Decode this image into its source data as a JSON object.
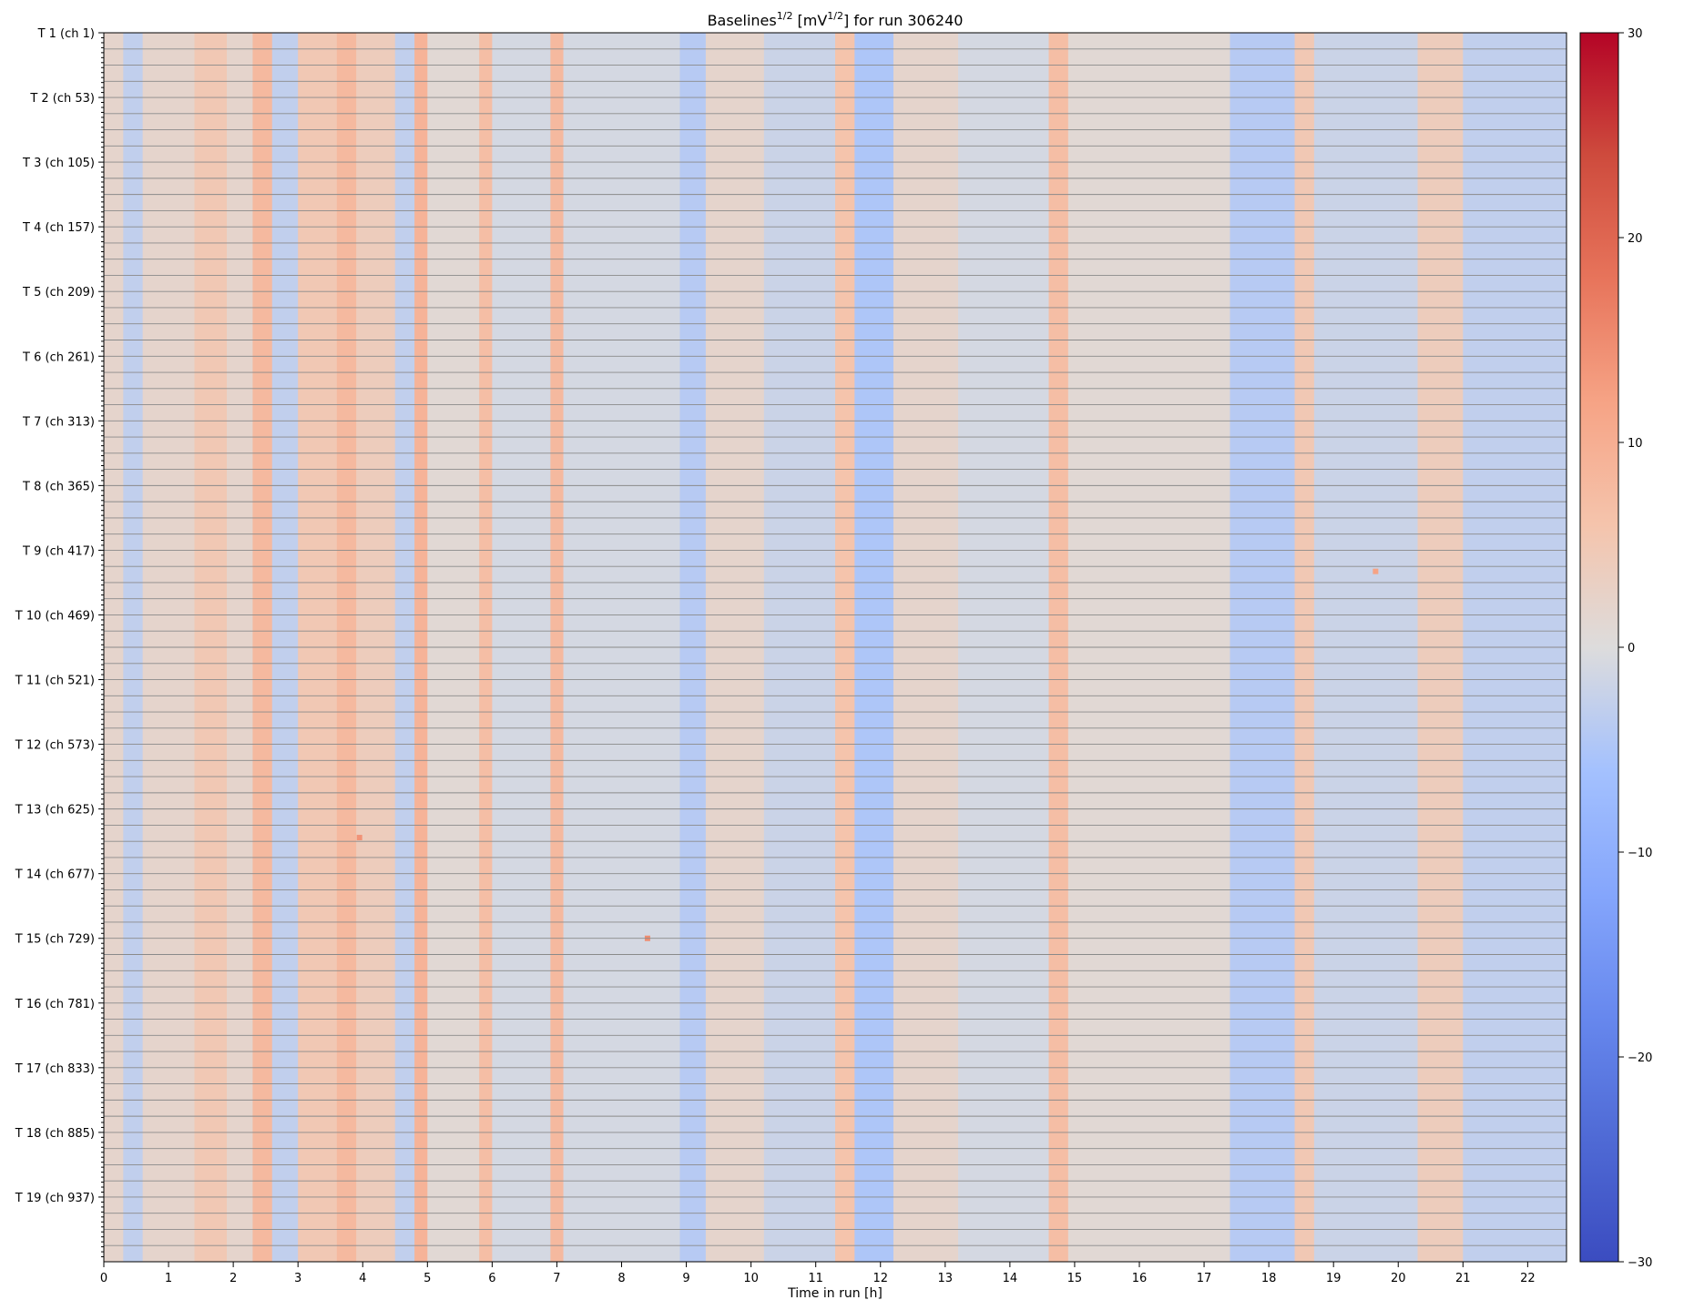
{
  "chart_data": {
    "type": "heatmap",
    "title_parts": {
      "base": "Baselines",
      "exp1": "1/2",
      "unit_open": " [mV",
      "exp2": "1/2",
      "rest": "] for run 306240"
    },
    "xlabel": "Time in run [h]",
    "xlim": [
      0,
      22.6
    ],
    "xticks": [
      0,
      1,
      2,
      3,
      4,
      5,
      6,
      7,
      8,
      9,
      10,
      11,
      12,
      13,
      14,
      15,
      16,
      17,
      18,
      19,
      20,
      21,
      22
    ],
    "y_tick_labels": [
      "T 1 (ch 1)",
      "T 2 (ch 53)",
      "T 3 (ch 105)",
      "T 4 (ch 157)",
      "T 5 (ch 209)",
      "T 6 (ch 261)",
      "T 7 (ch 313)",
      "T 8 (ch 365)",
      "T 9 (ch 417)",
      "T 10 (ch 469)",
      "T 11 (ch 521)",
      "T 12 (ch 573)",
      "T 13 (ch 625)",
      "T 14 (ch 677)",
      "T 15 (ch 729)",
      "T 16 (ch 781)",
      "T 17 (ch 833)",
      "T 18 (ch 885)",
      "T 19 (ch 937)"
    ],
    "channel_range": [
      1,
      988
    ],
    "channels_per_tower": 52,
    "colorbar": {
      "colormap": "coolwarm",
      "vmin": -30,
      "vmax": 30,
      "ticks": [
        30,
        20,
        10,
        0,
        -10,
        -20,
        -30
      ],
      "tick_labels": [
        "30",
        "20",
        "10",
        "0",
        "−10",
        "−20",
        "−30"
      ]
    },
    "color_stops": [
      "#3b4cc0",
      "#b40426"
    ],
    "column_bands": [
      {
        "x": [
          0.0,
          0.3
        ],
        "value": 2
      },
      {
        "x": [
          0.3,
          0.6
        ],
        "value": -3
      },
      {
        "x": [
          0.6,
          1.4
        ],
        "value": 2
      },
      {
        "x": [
          1.4,
          1.9
        ],
        "value": 5
      },
      {
        "x": [
          1.9,
          2.3
        ],
        "value": 2
      },
      {
        "x": [
          2.3,
          2.6
        ],
        "value": 8
      },
      {
        "x": [
          2.6,
          3.0
        ],
        "value": -3
      },
      {
        "x": [
          3.0,
          3.6
        ],
        "value": 5
      },
      {
        "x": [
          3.6,
          3.9
        ],
        "value": 8
      },
      {
        "x": [
          3.9,
          4.5
        ],
        "value": 4
      },
      {
        "x": [
          4.5,
          4.8
        ],
        "value": -3
      },
      {
        "x": [
          4.8,
          5.0
        ],
        "value": 9
      },
      {
        "x": [
          5.0,
          5.8
        ],
        "value": 1
      },
      {
        "x": [
          5.8,
          6.0
        ],
        "value": 7
      },
      {
        "x": [
          6.0,
          6.9
        ],
        "value": -1
      },
      {
        "x": [
          6.9,
          7.1
        ],
        "value": 8
      },
      {
        "x": [
          7.1,
          8.9
        ],
        "value": -1
      },
      {
        "x": [
          8.9,
          9.3
        ],
        "value": -4
      },
      {
        "x": [
          9.3,
          10.2
        ],
        "value": 2
      },
      {
        "x": [
          10.2,
          11.3
        ],
        "value": -2
      },
      {
        "x": [
          11.3,
          11.6
        ],
        "value": 6
      },
      {
        "x": [
          11.6,
          12.2
        ],
        "value": -5
      },
      {
        "x": [
          12.2,
          13.2
        ],
        "value": 2
      },
      {
        "x": [
          13.2,
          14.6
        ],
        "value": -1
      },
      {
        "x": [
          14.6,
          14.9
        ],
        "value": 7
      },
      {
        "x": [
          14.9,
          17.4
        ],
        "value": 1
      },
      {
        "x": [
          17.4,
          18.4
        ],
        "value": -4
      },
      {
        "x": [
          18.4,
          18.7
        ],
        "value": 5
      },
      {
        "x": [
          18.7,
          20.3
        ],
        "value": -2
      },
      {
        "x": [
          20.3,
          21.0
        ],
        "value": 4
      },
      {
        "x": [
          21.0,
          22.6
        ],
        "value": -3
      }
    ],
    "hotspots": [
      {
        "x": 3.95,
        "channel": 648,
        "value": 14
      },
      {
        "x": 8.4,
        "channel": 729,
        "value": 15
      },
      {
        "x": 19.65,
        "channel": 434,
        "value": 12
      }
    ]
  }
}
